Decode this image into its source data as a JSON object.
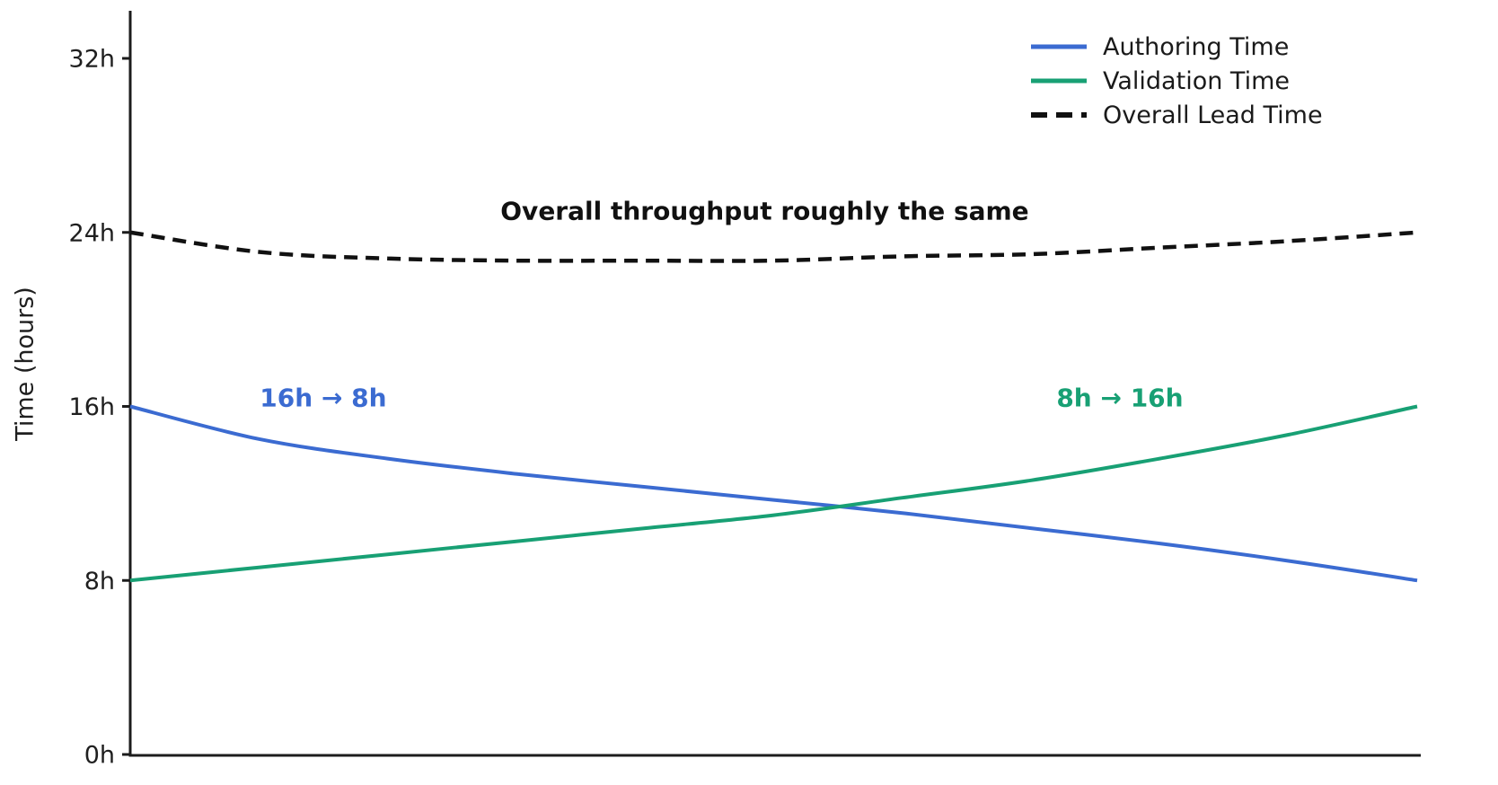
{
  "figure": {
    "background": "#ffffff",
    "axis_color": "#1c1c1c"
  },
  "chart_data": {
    "type": "line",
    "title": "",
    "xlabel": "",
    "ylabel": "Time (hours)",
    "ylim": [
      0,
      33.5
    ],
    "grid": false,
    "yticks": [
      {
        "value": 0,
        "label": "0h"
      },
      {
        "value": 8,
        "label": "8h"
      },
      {
        "value": 16,
        "label": "16h"
      },
      {
        "value": 24,
        "label": "24h"
      },
      {
        "value": 32,
        "label": "32h"
      }
    ],
    "x_normalized": [
      0,
      0.1,
      0.2,
      0.3,
      0.4,
      0.5,
      0.6,
      0.7,
      0.8,
      0.9,
      1.0
    ],
    "series": [
      {
        "name": "Authoring Time",
        "color": "#3b6bd1",
        "style": "solid",
        "values": [
          16.0,
          14.5,
          13.6,
          12.9,
          12.3,
          11.7,
          11.1,
          10.4,
          9.7,
          8.9,
          8.0
        ]
      },
      {
        "name": "Validation Time",
        "color": "#18a074",
        "style": "solid",
        "values": [
          8.0,
          8.6,
          9.2,
          9.8,
          10.4,
          11.0,
          11.8,
          12.6,
          13.6,
          14.7,
          16.0
        ]
      },
      {
        "name": "Overall Lead Time",
        "color": "#111111",
        "style": "dashed",
        "values": [
          24.0,
          23.1,
          22.8,
          22.7,
          22.7,
          22.7,
          22.9,
          23.0,
          23.3,
          23.6,
          24.0
        ]
      }
    ],
    "annotations": [
      {
        "text": "16h → 8h",
        "color": "#3b6bd1",
        "x": 0.15,
        "y": 16.4
      },
      {
        "text": "8h → 16h",
        "color": "#18a074",
        "x": 0.769,
        "y": 16.4
      },
      {
        "text": "Overall throughput roughly the same",
        "color": "#111111",
        "x": 0.493,
        "y": 25.0
      }
    ],
    "legend": {
      "position": "upper right",
      "items": [
        "Authoring Time",
        "Validation Time",
        "Overall Lead Time"
      ]
    }
  }
}
